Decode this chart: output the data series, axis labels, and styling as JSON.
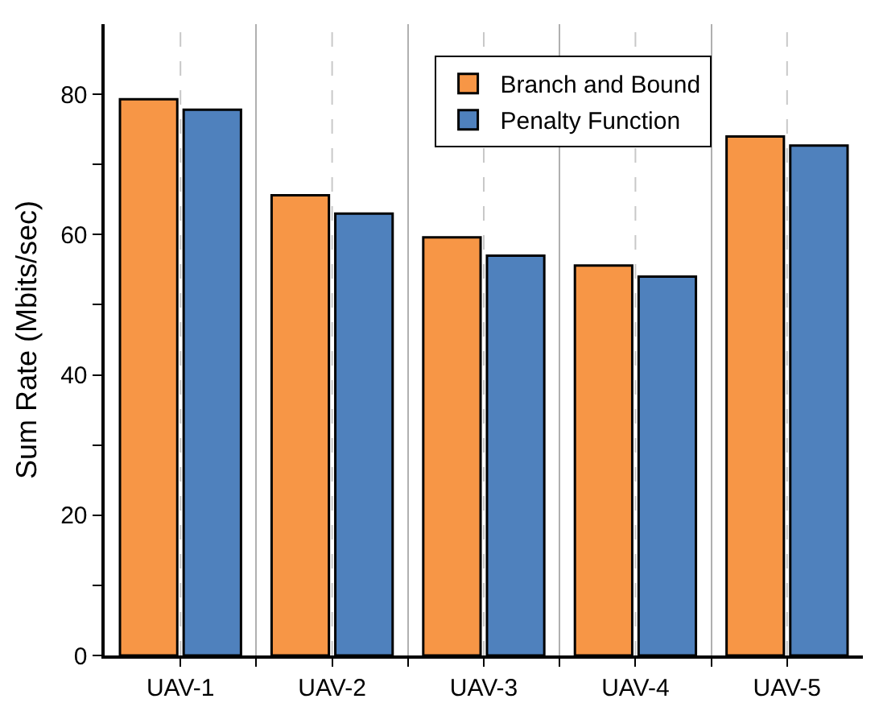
{
  "chart_data": {
    "type": "bar",
    "ylabel": "Sum Rate (Mbits/sec)",
    "categories": [
      "UAV-1",
      "UAV-2",
      "UAV-3",
      "UAV-4",
      "UAV-5"
    ],
    "series": [
      {
        "name": "Branch and Bound",
        "color": "#f79646",
        "values": [
          79.3,
          65.6,
          59.6,
          55.6,
          74.0
        ]
      },
      {
        "name": "Penalty Function",
        "color": "#4f81bd",
        "values": [
          77.8,
          63.0,
          57.0,
          54.0,
          72.7
        ]
      }
    ],
    "ylim": [
      0,
      90
    ],
    "yticks": [
      0,
      {
        "value": 10,
        "label": null
      },
      20,
      {
        "value": 30,
        "label": null
      },
      40,
      {
        "value": 50,
        "label": null
      },
      60,
      {
        "value": 70,
        "label": null
      },
      80
    ],
    "grid": "x",
    "legend": "top right"
  }
}
